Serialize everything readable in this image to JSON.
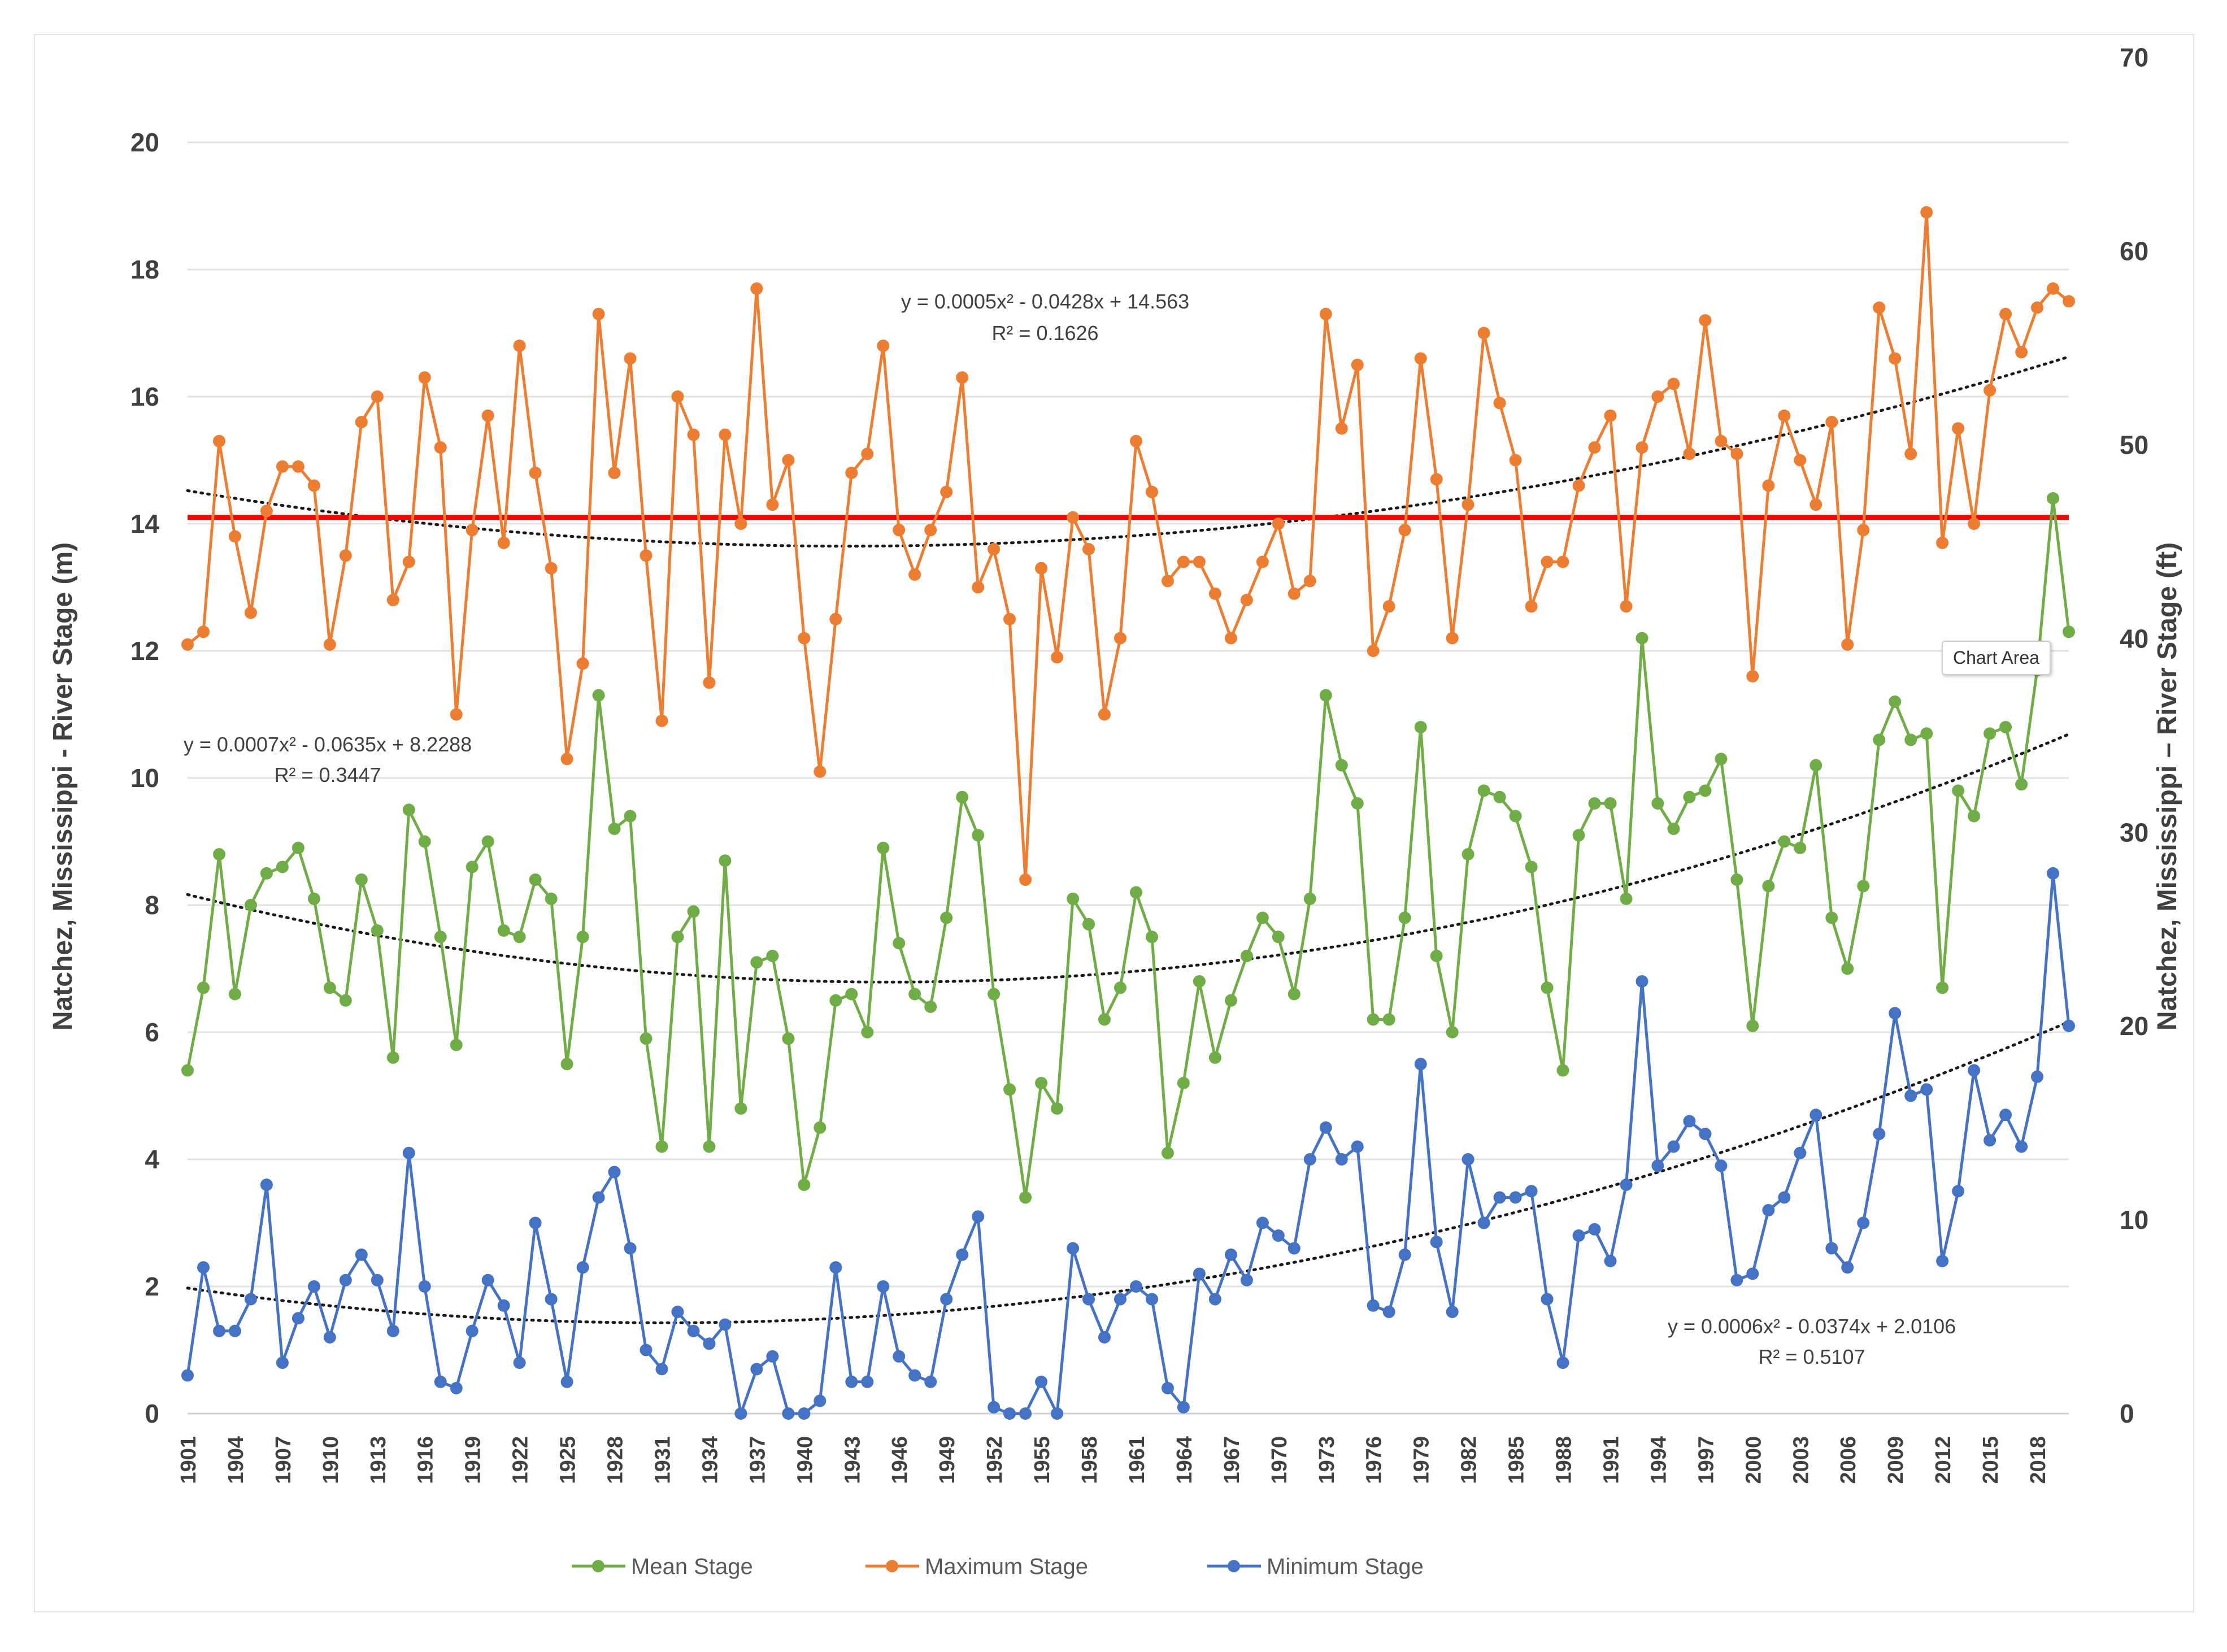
{
  "chart_data": {
    "type": "line",
    "y_left_label": "Natchez, Mississippi - River Stage (m)",
    "y_right_label": "Natchez, Mississippi – River Stage (ft)",
    "y_left_lim": [
      0,
      20
    ],
    "y_left_ticks": [
      "0",
      "2",
      "4",
      "6",
      "8",
      "10",
      "12",
      "14",
      "16",
      "18",
      "20"
    ],
    "y_right_ticks": [
      "0",
      "10",
      "20",
      "30",
      "40",
      "50",
      "60",
      "70"
    ],
    "x_start": 1901,
    "x_end": 2020,
    "x_tick_labels": [
      "1901",
      "1904",
      "1907",
      "1910",
      "1913",
      "1916",
      "1919",
      "1922",
      "1925",
      "1928",
      "1931",
      "1934",
      "1937",
      "1940",
      "1943",
      "1946",
      "1949",
      "1952",
      "1955",
      "1958",
      "1961",
      "1964",
      "1967",
      "1970",
      "1973",
      "1976",
      "1979",
      "1982",
      "1985",
      "1988",
      "1991",
      "1994",
      "1997",
      "2000",
      "2003",
      "2006",
      "2009",
      "2012",
      "2015",
      "2018"
    ],
    "reference_line": {
      "y": 14.1,
      "color": "#ff0000"
    },
    "series": [
      {
        "name": "Maximum Stage",
        "color": "#ed7d31",
        "trend": {
          "a": 0.0005,
          "b": -0.0428,
          "c": 14.563
        },
        "values": [
          12.1,
          12.3,
          15.3,
          13.8,
          12.6,
          14.2,
          14.9,
          14.9,
          14.6,
          12.1,
          13.5,
          15.6,
          16.0,
          12.8,
          13.4,
          16.3,
          15.2,
          11.0,
          13.9,
          15.7,
          13.7,
          16.8,
          14.8,
          13.3,
          10.3,
          11.8,
          17.3,
          14.8,
          16.6,
          13.5,
          10.9,
          16.0,
          15.4,
          11.5,
          15.4,
          14.0,
          17.7,
          14.3,
          15.0,
          12.2,
          10.1,
          12.5,
          14.8,
          15.1,
          16.8,
          13.9,
          13.2,
          13.9,
          14.5,
          16.3,
          13.0,
          13.6,
          12.5,
          8.4,
          13.3,
          11.9,
          14.1,
          13.6,
          11.0,
          12.2,
          15.3,
          14.5,
          13.1,
          13.4,
          13.4,
          12.9,
          12.2,
          12.8,
          13.4,
          14.0,
          12.9,
          13.1,
          17.3,
          15.5,
          16.5,
          12.0,
          12.7,
          13.9,
          16.6,
          14.7,
          12.2,
          14.3,
          17.0,
          15.9,
          15.0,
          12.7,
          13.4,
          13.4,
          14.6,
          15.2,
          15.7,
          12.7,
          15.2,
          16.0,
          16.2,
          15.1,
          17.2,
          15.3,
          15.1,
          11.6,
          14.6,
          15.7,
          15.0,
          14.3,
          15.6,
          12.1,
          13.9,
          17.4,
          16.6,
          15.1,
          18.9,
          13.7,
          15.5,
          14.0,
          16.1,
          17.3,
          16.7,
          17.4,
          17.7,
          17.5
        ]
      },
      {
        "name": "Mean Stage",
        "color": "#70ad47",
        "trend": {
          "a": 0.0007,
          "b": -0.0635,
          "c": 8.2288
        },
        "values": [
          5.4,
          6.7,
          8.8,
          6.6,
          8.0,
          8.5,
          8.6,
          8.9,
          8.1,
          6.7,
          6.5,
          8.4,
          7.6,
          5.6,
          9.5,
          9.0,
          7.5,
          5.8,
          8.6,
          9.0,
          7.6,
          7.5,
          8.4,
          8.1,
          5.5,
          7.5,
          11.3,
          9.2,
          9.4,
          5.9,
          4.2,
          7.5,
          7.9,
          4.2,
          8.7,
          4.8,
          7.1,
          7.2,
          5.9,
          3.6,
          4.5,
          6.5,
          6.6,
          6.0,
          8.9,
          7.4,
          6.6,
          6.4,
          7.8,
          9.7,
          9.1,
          6.6,
          5.1,
          3.4,
          5.2,
          4.8,
          8.1,
          7.7,
          6.2,
          6.7,
          8.2,
          7.5,
          4.1,
          5.2,
          6.8,
          5.6,
          6.5,
          7.2,
          7.8,
          7.5,
          6.6,
          8.1,
          11.3,
          10.2,
          9.6,
          6.2,
          6.2,
          7.8,
          10.8,
          7.2,
          6.0,
          8.8,
          9.8,
          9.7,
          9.4,
          8.6,
          6.7,
          5.4,
          9.1,
          9.6,
          9.6,
          8.1,
          12.2,
          9.6,
          9.2,
          9.7,
          9.8,
          10.3,
          8.4,
          6.1,
          8.3,
          9.0,
          8.9,
          10.2,
          7.8,
          7.0,
          8.3,
          10.6,
          11.2,
          10.6,
          10.7,
          6.7,
          9.8,
          9.4,
          10.7,
          10.8,
          9.9,
          11.7,
          14.4,
          12.3
        ]
      },
      {
        "name": "Minimum Stage",
        "color": "#4472c4",
        "trend": {
          "a": 0.0006,
          "b": -0.0374,
          "c": 2.0106
        },
        "values": [
          0.6,
          2.3,
          1.3,
          1.3,
          1.8,
          3.6,
          0.8,
          1.5,
          2.0,
          1.2,
          2.1,
          2.5,
          2.1,
          1.3,
          4.1,
          2.0,
          0.5,
          0.4,
          1.3,
          2.1,
          1.7,
          0.8,
          3.0,
          1.8,
          0.5,
          2.3,
          3.4,
          3.8,
          2.6,
          1.0,
          0.7,
          1.6,
          1.3,
          1.1,
          1.4,
          0.0,
          0.7,
          0.9,
          0.0,
          0.0,
          0.2,
          2.3,
          0.5,
          0.5,
          2.0,
          0.9,
          0.6,
          0.5,
          1.8,
          2.5,
          3.1,
          0.1,
          0.0,
          0.0,
          0.5,
          0.0,
          2.6,
          1.8,
          1.2,
          1.8,
          2.0,
          1.8,
          0.4,
          0.1,
          2.2,
          1.8,
          2.5,
          2.1,
          3.0,
          2.8,
          2.6,
          4.0,
          4.5,
          4.0,
          4.2,
          1.7,
          1.6,
          2.5,
          5.5,
          2.7,
          1.6,
          4.0,
          3.0,
          3.4,
          3.4,
          3.5,
          1.8,
          0.8,
          2.8,
          2.9,
          2.4,
          3.6,
          6.8,
          3.9,
          4.2,
          4.6,
          4.4,
          3.9,
          2.1,
          2.2,
          3.2,
          3.4,
          4.1,
          4.7,
          2.6,
          2.3,
          3.0,
          4.4,
          6.3,
          5.0,
          5.1,
          2.4,
          3.5,
          5.4,
          4.3,
          4.7,
          4.2,
          5.3,
          8.5,
          6.1
        ]
      }
    ],
    "legend": [
      "Mean Stage",
      "Maximum Stage",
      "Minimum Stage"
    ],
    "legend_position": "bottom",
    "annotations": {
      "max_eq": "y = 0.0005x² - 0.0428x + 14.563",
      "max_r2": "R² = 0.1626",
      "mean_eq": "y = 0.0007x² - 0.0635x + 8.2288",
      "mean_r2": "R² = 0.3447",
      "min_eq": "y = 0.0006x² - 0.0374x + 2.0106",
      "min_r2": "R² = 0.5107"
    },
    "tooltip": "Chart Area"
  }
}
